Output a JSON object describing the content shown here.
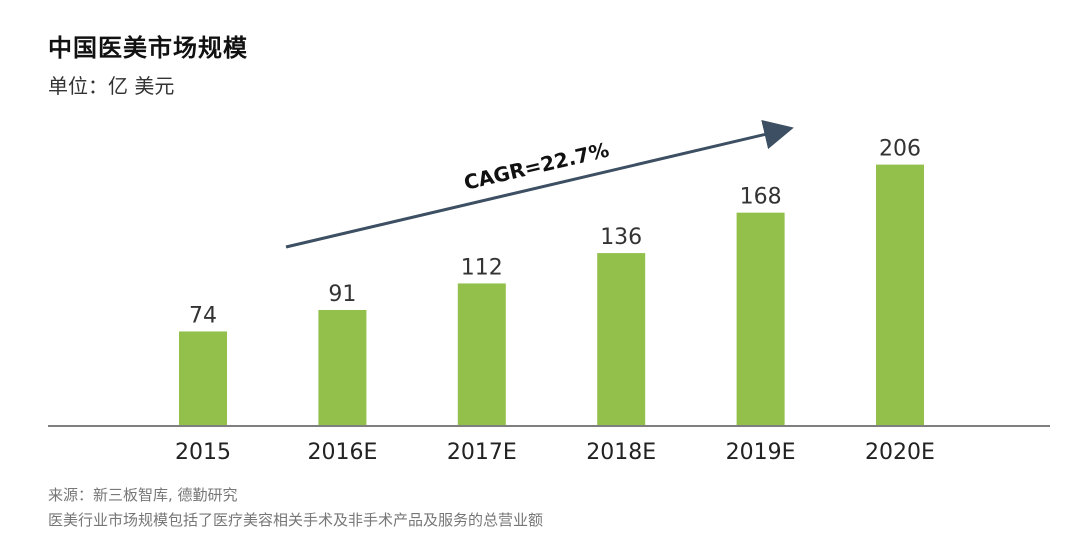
{
  "title": "中国医美市场规模",
  "unit_label": "单位：亿 美元",
  "source": {
    "line1": "来源：新三板智库, 德勤研究",
    "line2": "医美行业市场规模包括了医疗美容相关手术及非手术产品及服务的总营业额"
  },
  "colors": {
    "bar": "#92c04a",
    "arrow": "#3d4f63",
    "axis": "#7f7f7f"
  },
  "chart_data": {
    "type": "bar",
    "categories": [
      "2015",
      "2016E",
      "2017E",
      "2018E",
      "2019E",
      "2020E"
    ],
    "values": [
      74,
      91,
      112,
      136,
      168,
      206
    ],
    "title": "中国医美市场规模",
    "ylabel": "",
    "xlabel": "",
    "annotations": [
      {
        "text": "CAGR=22.7%",
        "type": "arrow"
      }
    ]
  }
}
